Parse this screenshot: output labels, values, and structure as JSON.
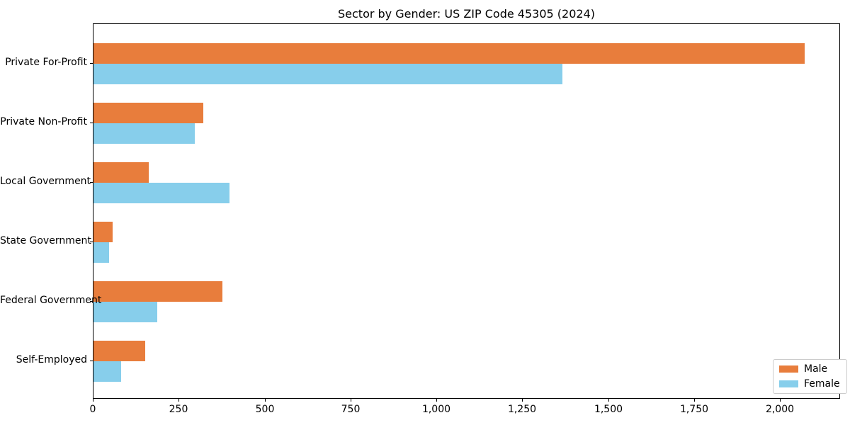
{
  "title": "Sector by Gender: US ZIP Code 45305 (2024)",
  "chart_data": {
    "type": "bar",
    "orientation": "horizontal",
    "title": "Sector by Gender: US ZIP Code 45305 (2024)",
    "xlabel": "",
    "ylabel": "",
    "categories": [
      "Private For-Profit",
      "Private Non-Profit",
      "Local Government",
      "State Government",
      "Federal Government",
      "Self-Employed"
    ],
    "series": [
      {
        "name": "Male",
        "color": "#e87d3c",
        "values": [
          2070,
          320,
          160,
          55,
          375,
          150
        ]
      },
      {
        "name": "Female",
        "color": "#87ceeb",
        "values": [
          1365,
          295,
          395,
          45,
          185,
          80
        ]
      }
    ],
    "xlim": [
      0,
      2175
    ],
    "xticks": [
      0,
      250,
      500,
      750,
      1000,
      1250,
      1500,
      1750,
      2000
    ],
    "xtick_labels": [
      "0",
      "250",
      "500",
      "750",
      "1,000",
      "1,250",
      "1,500",
      "1,750",
      "2,000"
    ],
    "grid": false,
    "legend_position": "lower right",
    "spine_color": "#000000"
  }
}
